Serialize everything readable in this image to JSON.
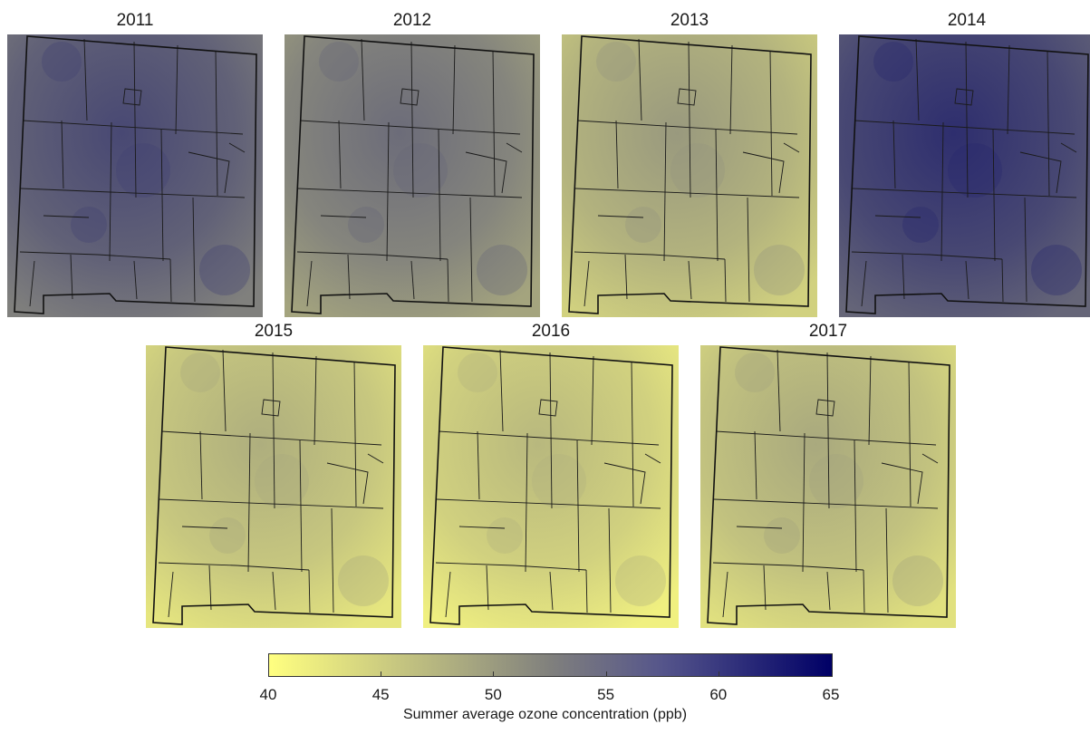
{
  "panels": [
    {
      "year": "2011",
      "level": 0.62
    },
    {
      "year": "2012",
      "level": 0.48
    },
    {
      "year": "2013",
      "level": 0.3
    },
    {
      "year": "2014",
      "level": 0.72
    },
    {
      "year": "2015",
      "level": 0.22
    },
    {
      "year": "2016",
      "level": 0.18
    },
    {
      "year": "2017",
      "level": 0.24
    }
  ],
  "colorbar": {
    "min": 40,
    "max": 65,
    "ticks": [
      "40",
      "45",
      "50",
      "55",
      "60",
      "65"
    ],
    "title": "Summer average ozone concentration (ppb)",
    "low_color": "#ffff80",
    "mid_color": "#80807d",
    "high_color": "#000066"
  }
}
